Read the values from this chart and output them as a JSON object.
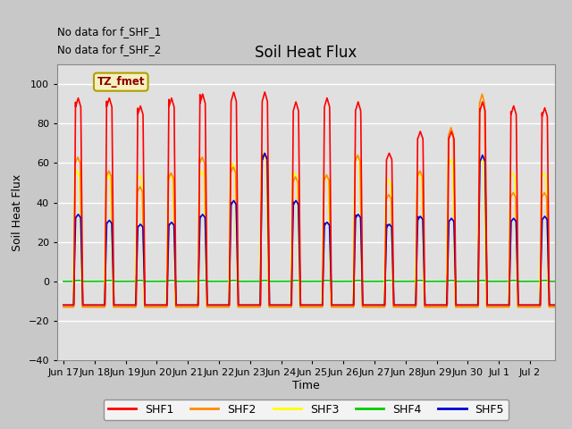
{
  "title": "Soil Heat Flux",
  "ylabel": "Soil Heat Flux",
  "xlabel": "Time",
  "ylim": [
    -40,
    110
  ],
  "yticks": [
    -40,
    -20,
    0,
    20,
    40,
    60,
    80,
    100
  ],
  "bg_color": "#c8c8c8",
  "plot_bg_color": "#e0e0e0",
  "colors": {
    "SHF1": "#ff0000",
    "SHF2": "#ff8c00",
    "SHF3": "#ffff00",
    "SHF4": "#00cc00",
    "SHF5": "#0000cc"
  },
  "note1": "No data for f_SHF_1",
  "note2": "No data for f_SHF_2",
  "tz_label": "TZ_fmet",
  "x_tick_labels": [
    "Jun 17",
    "Jun 18",
    "Jun 19",
    "Jun 20",
    "Jun 21",
    "Jun 22",
    "Jun 23",
    "Jun 24",
    "Jun 25",
    "Jun 26",
    "Jun 27",
    "Jun 28",
    "Jun 29",
    "Jun 30",
    "Jul 1",
    "Jul 2"
  ],
  "n_days": 16
}
